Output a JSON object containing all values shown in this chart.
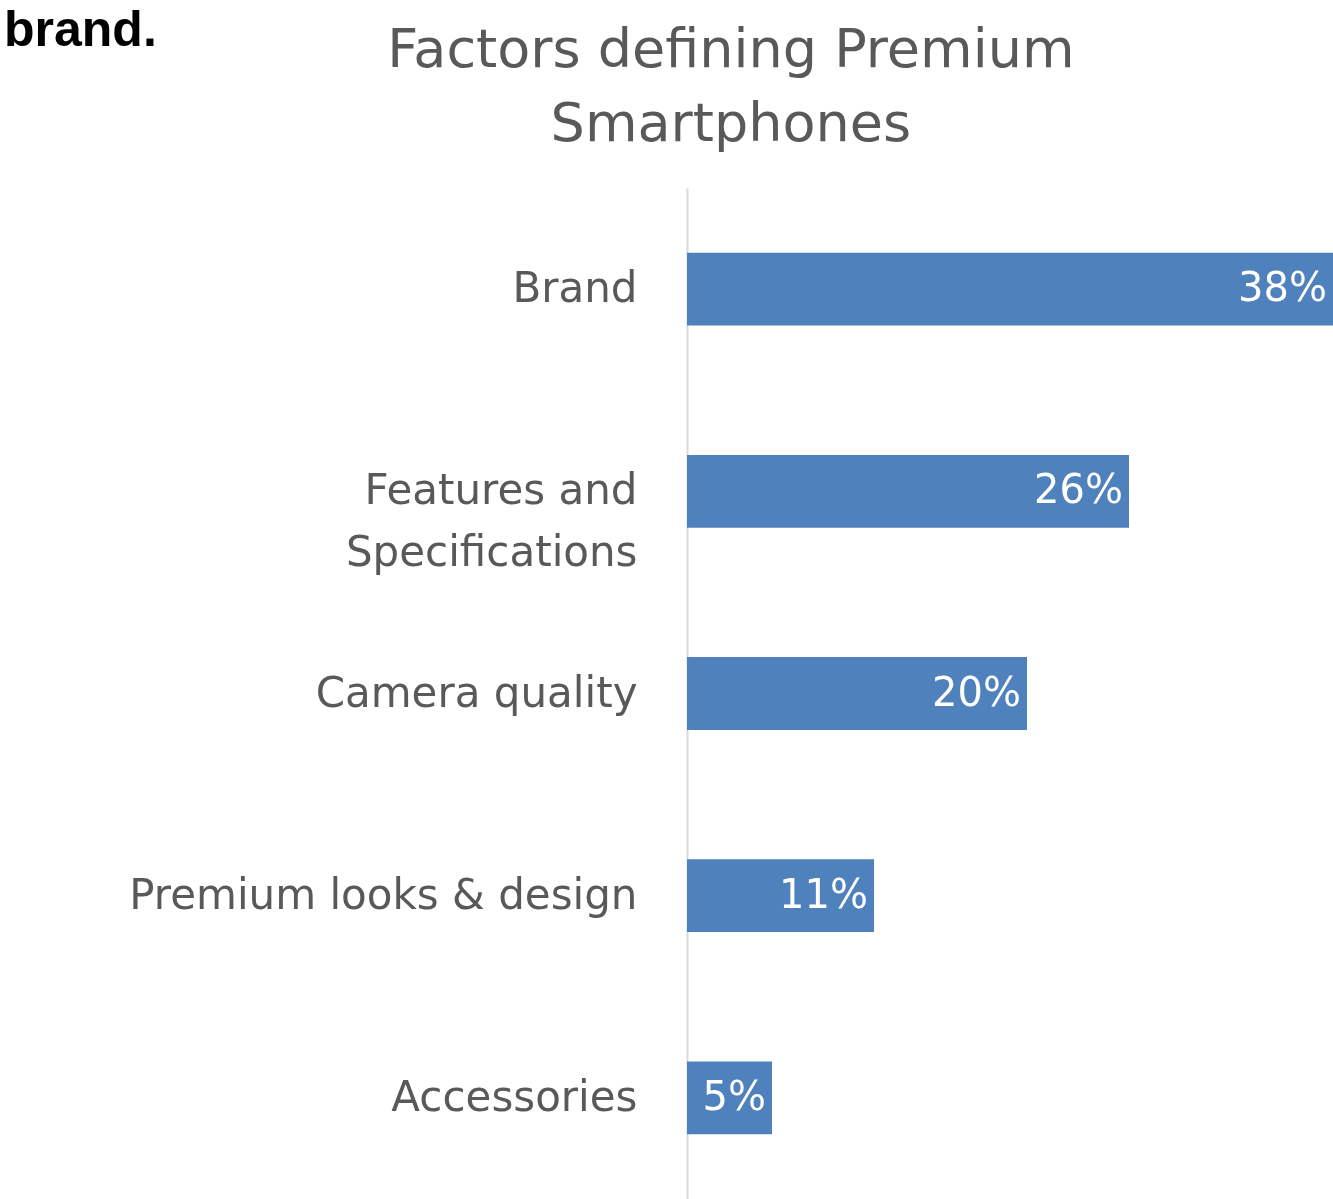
{
  "chart_data": {
    "type": "bar",
    "orientation": "horizontal",
    "title": "Factors defining Premium Smartphones",
    "categories": [
      "Brand",
      "Features and Specifications",
      "Camera quality",
      "Premium looks & design",
      "Accessories"
    ],
    "values": [
      38,
      26,
      20,
      11,
      5
    ],
    "value_labels": [
      "38%",
      "26%",
      "20%",
      "11%",
      "5%"
    ],
    "color": "#4f81bd",
    "xlim": [
      0,
      38
    ],
    "annotations": [
      "brand."
    ]
  }
}
